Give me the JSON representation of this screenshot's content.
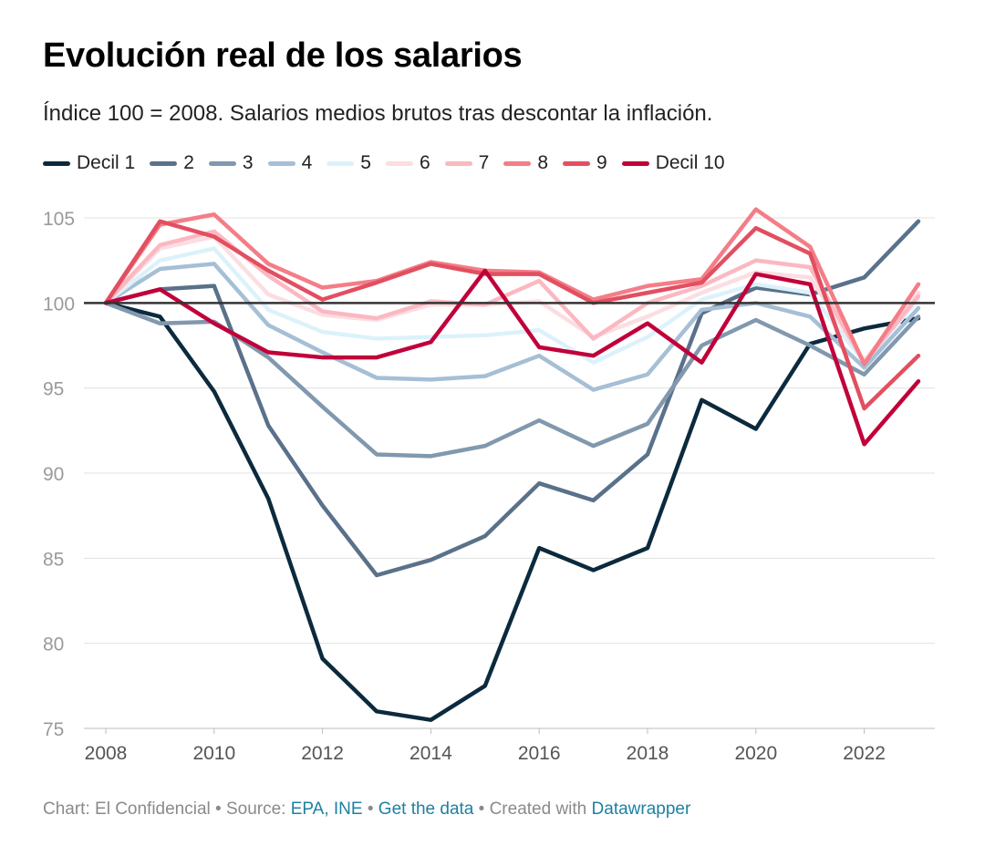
{
  "chart_data": {
    "type": "line",
    "title": "Evolución real de los salarios",
    "subtitle": "Índice 100 = 2008. Salarios medios brutos tras descontar la inflación.",
    "xlabel": "",
    "ylabel": "",
    "xlim": [
      2008,
      2023
    ],
    "ylim": [
      75,
      105
    ],
    "y_ticks": [
      75,
      80,
      85,
      90,
      95,
      100,
      105
    ],
    "x_ticks": [
      2008,
      2010,
      2012,
      2014,
      2016,
      2018,
      2020,
      2022
    ],
    "reference_line": 100,
    "x": [
      2008,
      2009,
      2010,
      2011,
      2012,
      2013,
      2014,
      2015,
      2016,
      2017,
      2018,
      2019,
      2020,
      2021,
      2022,
      2023
    ],
    "series": [
      {
        "name": "Decil 1",
        "color": "#0c2a3e",
        "values": [
          100,
          99.2,
          94.8,
          88.5,
          79.1,
          76.0,
          75.5,
          77.5,
          85.6,
          84.3,
          85.6,
          94.3,
          92.6,
          97.6,
          98.5,
          99.1
        ]
      },
      {
        "name": "2",
        "color": "#5a718a",
        "values": [
          100,
          100.8,
          101.0,
          92.8,
          88.1,
          84.0,
          84.9,
          86.3,
          89.4,
          88.4,
          91.1,
          99.4,
          100.9,
          100.5,
          101.5,
          104.8
        ]
      },
      {
        "name": "3",
        "color": "#8198ae",
        "values": [
          100,
          98.8,
          98.9,
          96.8,
          93.9,
          91.1,
          91.0,
          91.6,
          93.1,
          91.6,
          92.9,
          97.5,
          99.0,
          97.5,
          95.8,
          99.2
        ]
      },
      {
        "name": "4",
        "color": "#a5bfd6",
        "values": [
          100,
          102.0,
          102.3,
          98.7,
          97.1,
          95.6,
          95.5,
          95.7,
          96.9,
          94.9,
          95.8,
          99.6,
          100.0,
          99.2,
          96.2,
          99.7
        ]
      },
      {
        "name": "5",
        "color": "#dcf2fb",
        "values": [
          100,
          102.5,
          103.2,
          99.6,
          98.3,
          97.9,
          98.0,
          98.1,
          98.4,
          96.5,
          98.0,
          100.2,
          101.1,
          100.6,
          96.5,
          100.2
        ]
      },
      {
        "name": "6",
        "color": "#fcdde2",
        "values": [
          100,
          103.2,
          103.9,
          100.5,
          99.3,
          99.0,
          99.9,
          99.9,
          100.1,
          98.0,
          99.2,
          100.6,
          101.8,
          101.5,
          96.6,
          100.6
        ]
      },
      {
        "name": "7",
        "color": "#fbb8c1",
        "values": [
          100,
          103.4,
          104.2,
          101.6,
          99.5,
          99.1,
          100.1,
          99.9,
          101.3,
          97.9,
          100.0,
          101.0,
          102.5,
          102.1,
          96.5,
          100.4
        ]
      },
      {
        "name": "8",
        "color": "#f47d87",
        "values": [
          100,
          104.6,
          105.2,
          102.3,
          100.9,
          101.3,
          102.4,
          101.9,
          101.8,
          100.2,
          101.0,
          101.4,
          105.5,
          103.3,
          96.4,
          101.1
        ]
      },
      {
        "name": "9",
        "color": "#e24f60",
        "values": [
          100,
          104.8,
          103.9,
          101.9,
          100.2,
          101.2,
          102.3,
          101.7,
          101.7,
          100.0,
          100.6,
          101.2,
          104.4,
          102.9,
          93.8,
          96.9
        ]
      },
      {
        "name": "Decil 10",
        "color": "#c1003a",
        "values": [
          100,
          100.8,
          98.8,
          97.1,
          96.8,
          96.8,
          97.7,
          101.9,
          97.4,
          96.9,
          98.8,
          96.5,
          101.7,
          101.1,
          91.7,
          95.4
        ]
      }
    ]
  },
  "footer": {
    "chart_by": "Chart: El Confidencial",
    "sep1": " • Source: ",
    "source": "EPA, INE",
    "sep2": " • ",
    "get_data": "Get the data",
    "sep3": " • Created with ",
    "tool": "Datawrapper"
  }
}
